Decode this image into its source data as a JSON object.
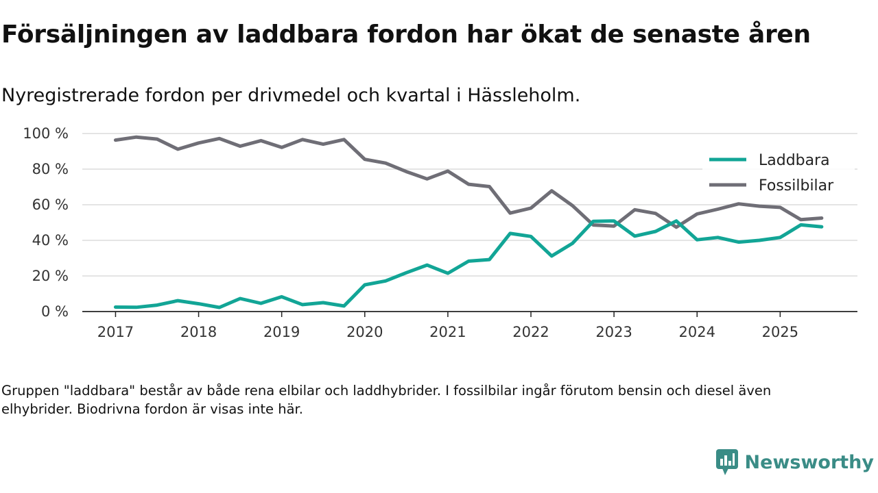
{
  "title": "Försäljningen av laddbara fordon har ökat de senaste åren",
  "subtitle": "Nyregistrerade fordon per drivmedel och kvartal i Hässleholm.",
  "note": "Gruppen \"laddbara\" består av både rena elbilar och laddhybrider. I fossilbilar ingår förutom bensin och diesel även elhybrider. Biodrivna fordon är visas inte här.",
  "brand": {
    "name": "Newsworthy",
    "logo_icon": "bar-chart-icon",
    "color": "#3a8c86"
  },
  "chart_data": {
    "type": "line",
    "title": "Försäljningen av laddbara fordon har ökat de senaste åren",
    "subtitle": "Nyregistrerade fordon per drivmedel och kvartal i Hässleholm.",
    "xlabel": "",
    "ylabel": "",
    "x": [
      2017.0,
      2017.25,
      2017.5,
      2017.75,
      2018.0,
      2018.25,
      2018.5,
      2018.75,
      2019.0,
      2019.25,
      2019.5,
      2019.75,
      2020.0,
      2020.25,
      2020.5,
      2020.75,
      2021.0,
      2021.25,
      2021.5,
      2021.75,
      2022.0,
      2022.25,
      2022.5,
      2022.75,
      2023.0,
      2023.25,
      2023.5,
      2023.75,
      2024.0,
      2024.25,
      2024.5,
      2024.75,
      2025.0,
      2025.25,
      2025.5
    ],
    "xticks": [
      2017,
      2018,
      2019,
      2020,
      2021,
      2022,
      2023,
      2024,
      2025
    ],
    "xtick_labels": [
      "2017",
      "2018",
      "2019",
      "2020",
      "2021",
      "2022",
      "2023",
      "2024",
      "2025"
    ],
    "xlim": [
      2016.6,
      2025.93
    ],
    "ylim": [
      0,
      100
    ],
    "yticks": [
      0,
      20,
      40,
      60,
      80,
      100
    ],
    "ytick_labels": [
      "0 %",
      "20 %",
      "40 %",
      "60 %",
      "80 %",
      "100 %"
    ],
    "grid": true,
    "legend_position": "top-right",
    "series": [
      {
        "name": "Laddbara",
        "color": "#12a596",
        "values": [
          2.5,
          2.4,
          3.6,
          6.1,
          4.4,
          2.3,
          7.3,
          4.6,
          8.3,
          3.9,
          5.0,
          3.1,
          15.0,
          17.2,
          21.8,
          26.1,
          21.5,
          28.3,
          29.2,
          43.9,
          42.2,
          31.2,
          38.3,
          50.7,
          50.9,
          42.4,
          45.0,
          50.9,
          40.3,
          41.6,
          39.0,
          40.0,
          41.6,
          48.7,
          47.6
        ]
      },
      {
        "name": "Fossilbilar",
        "color": "#6f6e76",
        "values": [
          96.3,
          98.0,
          96.9,
          91.2,
          94.7,
          97.2,
          92.9,
          96.0,
          92.2,
          96.6,
          94.0,
          96.6,
          85.5,
          83.4,
          78.6,
          74.5,
          78.9,
          71.5,
          70.2,
          55.3,
          58.1,
          67.8,
          59.5,
          48.6,
          48.0,
          57.2,
          55.1,
          47.4,
          54.8,
          57.5,
          60.5,
          59.2,
          58.5,
          51.6,
          52.5
        ]
      }
    ]
  }
}
